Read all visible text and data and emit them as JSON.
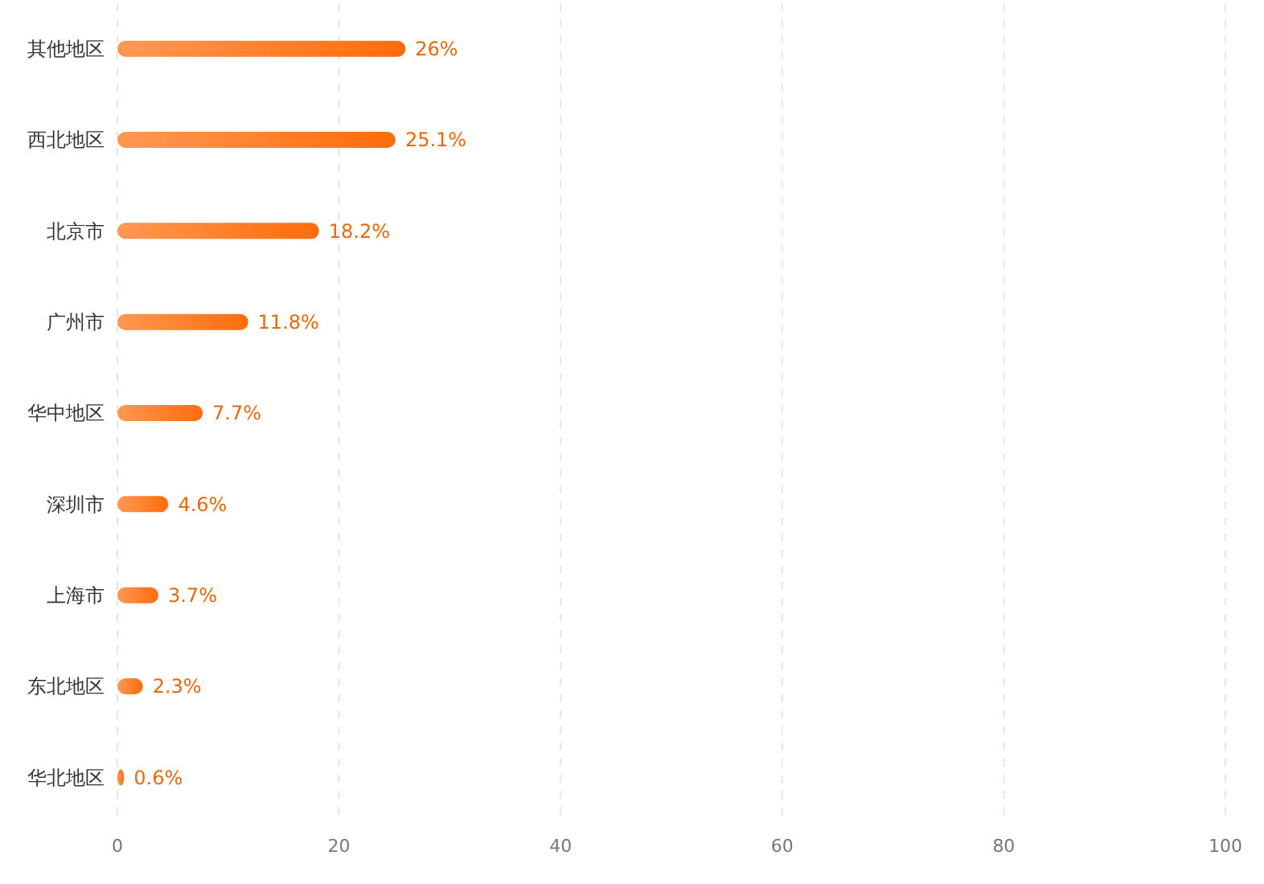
{
  "chart_data": {
    "type": "bar",
    "orientation": "horizontal",
    "categories": [
      "其他地区",
      "西北地区",
      "北京市",
      "广州市",
      "华中地区",
      "深圳市",
      "上海市",
      "东北地区",
      "华北地区"
    ],
    "values": [
      26,
      25.1,
      18.2,
      11.8,
      7.7,
      4.6,
      3.7,
      2.3,
      0.6
    ],
    "value_labels": [
      "26%",
      "25.1%",
      "18.2%",
      "11.8%",
      "7.7%",
      "4.6%",
      "3.7%",
      "2.3%",
      "0.6%"
    ],
    "color": "#ff6c0a",
    "xlim": [
      0,
      100
    ],
    "xticks": [
      0,
      20,
      40,
      60,
      80,
      100
    ],
    "grid": "x"
  }
}
